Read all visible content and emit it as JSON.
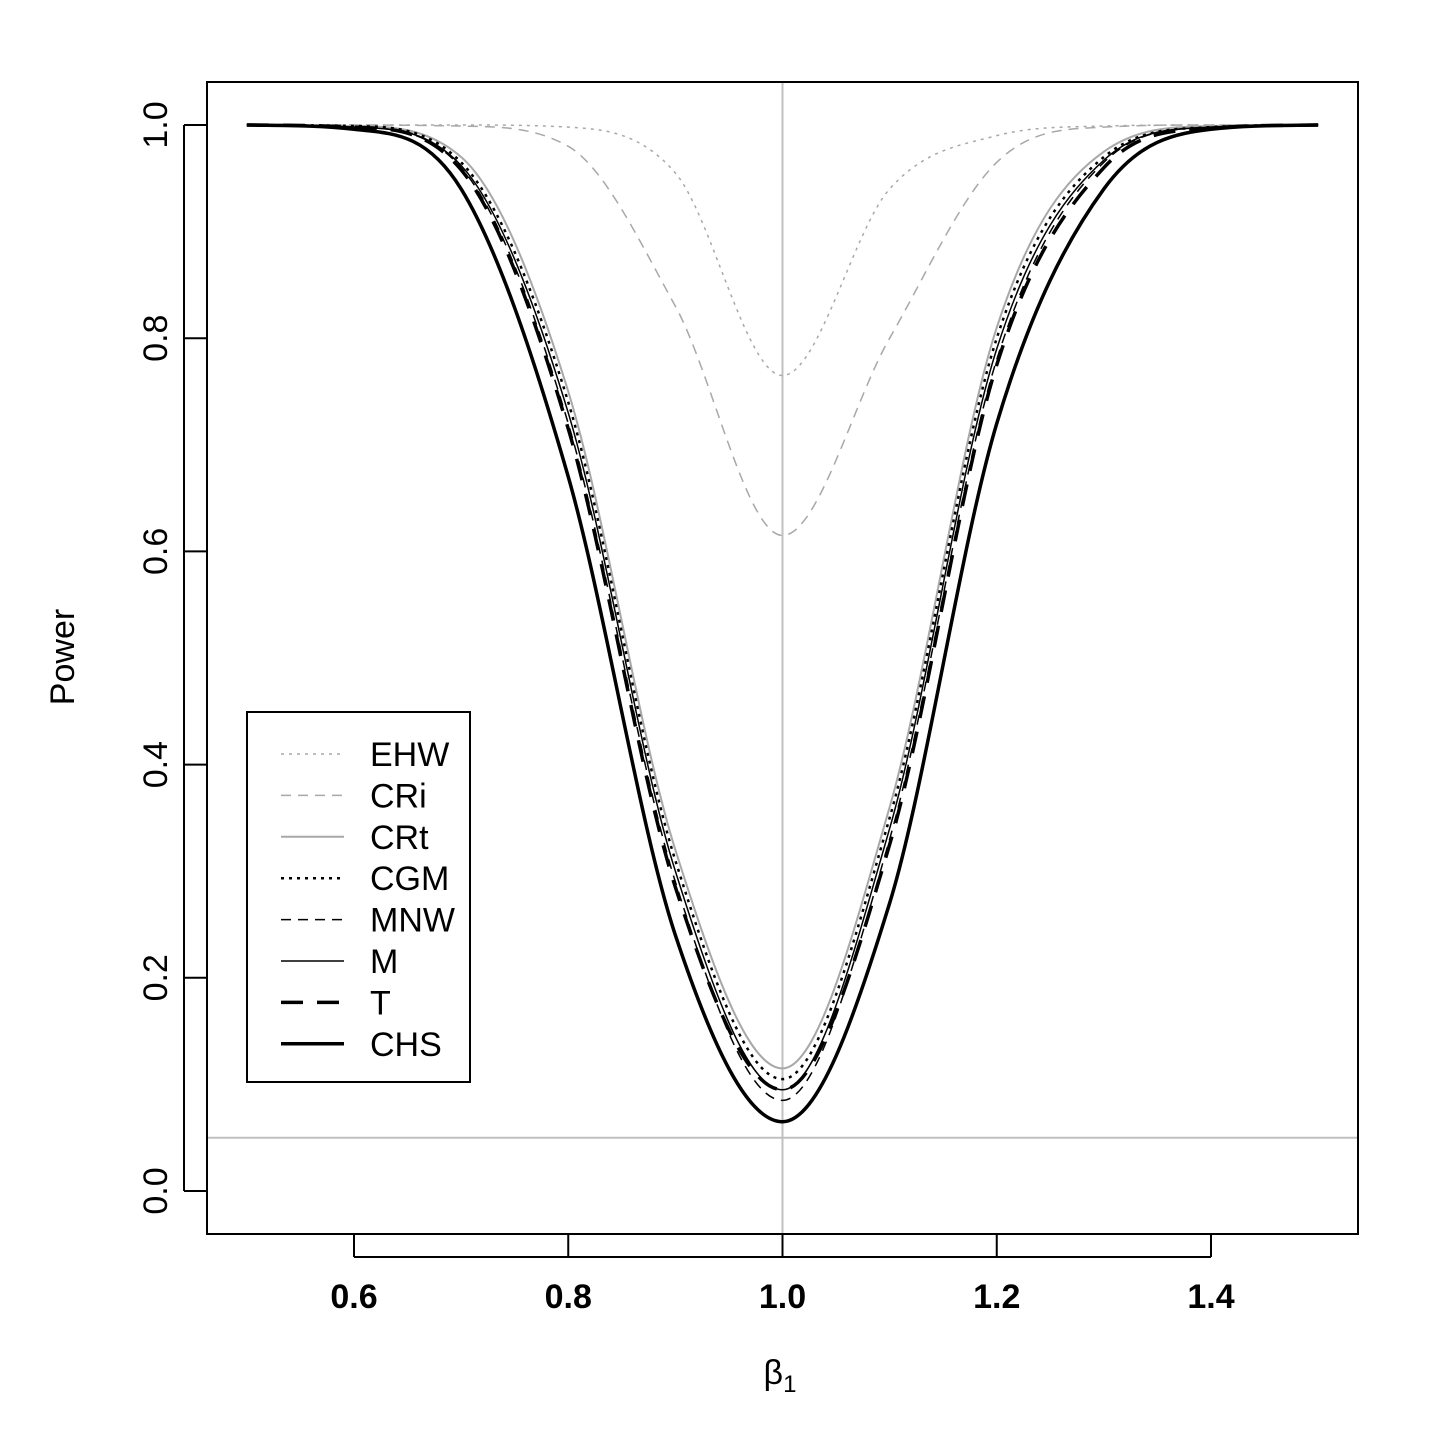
{
  "chart_data": {
    "type": "line",
    "title": "",
    "xlabel": "β",
    "xlabel_sub": "1",
    "ylabel": "Power",
    "xlim": [
      0.5,
      1.5
    ],
    "ylim": [
      0.0,
      1.0
    ],
    "x_ticks": [
      0.6,
      0.8,
      1.0,
      1.2,
      1.4
    ],
    "x_tick_labels": [
      "0.6",
      "0.8",
      "1.0",
      "1.2",
      "1.4"
    ],
    "y_ticks": [
      0.0,
      0.2,
      0.4,
      0.6,
      0.8,
      1.0
    ],
    "y_tick_labels": [
      "0.0",
      "0.2",
      "0.4",
      "0.6",
      "0.8",
      "1.0"
    ],
    "grid": false,
    "reference_lines": {
      "vertical_x": 1.0,
      "horizontal_y": 0.05,
      "color": "#c0c0c0"
    },
    "legend_position": "bottom-left",
    "x": [
      0.5,
      0.6,
      0.7,
      0.8,
      0.9,
      1.0,
      1.1,
      1.2,
      1.3,
      1.4,
      1.5
    ],
    "series": [
      {
        "name": "EHW",
        "style": "dotted",
        "color": "#a8a8a8",
        "width": 1.5,
        "values": [
          1.0,
          1.0,
          1.0,
          0.998,
          0.955,
          0.765,
          0.94,
          0.99,
          0.999,
          1.0,
          1.0
        ]
      },
      {
        "name": "CRi",
        "style": "dashed",
        "color": "#a8a8a8",
        "width": 1.5,
        "values": [
          1.0,
          1.0,
          0.999,
          0.98,
          0.83,
          0.615,
          0.8,
          0.965,
          0.998,
          1.0,
          1.0
        ]
      },
      {
        "name": "CRt",
        "style": "solid",
        "color": "#a8a8a8",
        "width": 2,
        "values": [
          1.0,
          0.999,
          0.97,
          0.75,
          0.32,
          0.115,
          0.36,
          0.81,
          0.975,
          0.999,
          1.0
        ]
      },
      {
        "name": "CGM",
        "style": "dotted",
        "color": "#000000",
        "width": 2.5,
        "values": [
          1.0,
          0.999,
          0.965,
          0.74,
          0.31,
          0.105,
          0.35,
          0.8,
          0.97,
          0.998,
          1.0
        ]
      },
      {
        "name": "MNW",
        "style": "dashed",
        "color": "#000000",
        "width": 1.5,
        "values": [
          1.0,
          0.998,
          0.96,
          0.72,
          0.29,
          0.085,
          0.33,
          0.78,
          0.965,
          0.998,
          1.0
        ]
      },
      {
        "name": "M",
        "style": "solid",
        "color": "#000000",
        "width": 1.5,
        "values": [
          1.0,
          0.998,
          0.962,
          0.73,
          0.3,
          0.095,
          0.34,
          0.79,
          0.967,
          0.998,
          1.0
        ]
      },
      {
        "name": "T",
        "style": "dashed-thick",
        "color": "#000000",
        "width": 3.5,
        "values": [
          1.0,
          0.998,
          0.958,
          0.715,
          0.285,
          0.095,
          0.325,
          0.775,
          0.96,
          0.997,
          1.0
        ]
      },
      {
        "name": "CHS",
        "style": "solid",
        "color": "#000000",
        "width": 3.5,
        "values": [
          1.0,
          0.996,
          0.94,
          0.67,
          0.24,
          0.065,
          0.27,
          0.72,
          0.94,
          0.996,
          1.0
        ]
      }
    ]
  }
}
